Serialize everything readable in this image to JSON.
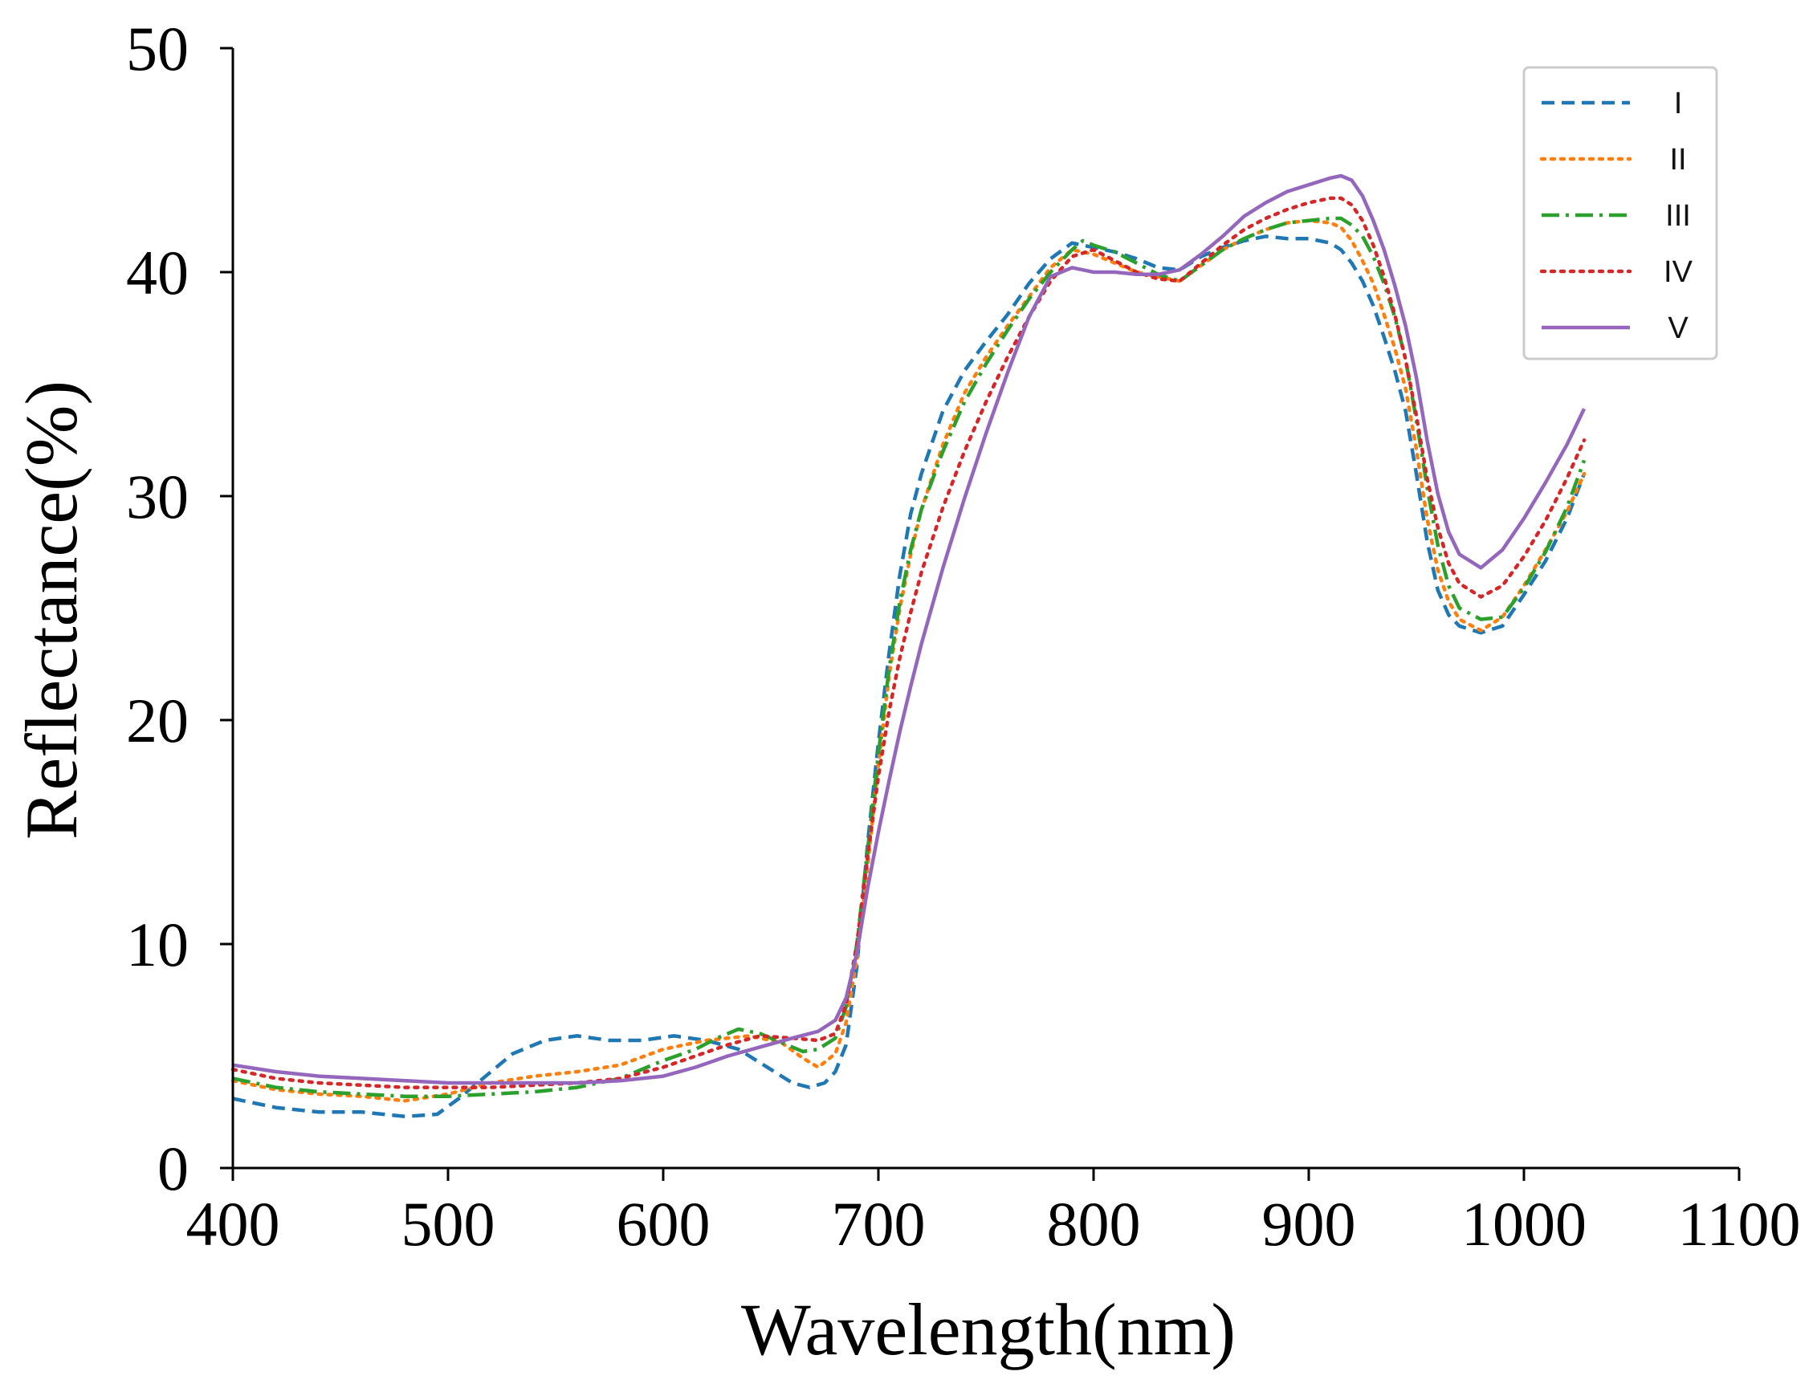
{
  "chart_data": {
    "type": "line",
    "title": "",
    "xlabel": "Wavelength(nm)",
    "ylabel": "Reflectance(%)",
    "xlim": [
      400,
      1100
    ],
    "ylim": [
      0,
      50
    ],
    "xticks": [
      400,
      500,
      600,
      700,
      800,
      900,
      1000,
      1100
    ],
    "yticks": [
      0,
      10,
      20,
      30,
      40,
      50
    ],
    "grid": false,
    "legend_position": "top-right",
    "series": [
      {
        "name": "I",
        "color": "#1f77b4",
        "style": "dashed",
        "x": [
          400,
          420,
          440,
          460,
          480,
          495,
          505,
          520,
          530,
          545,
          560,
          575,
          590,
          605,
          620,
          635,
          650,
          660,
          668,
          675,
          680,
          685,
          690,
          695,
          700,
          705,
          710,
          715,
          720,
          730,
          740,
          750,
          760,
          770,
          780,
          790,
          800,
          810,
          820,
          830,
          840,
          850,
          860,
          870,
          880,
          890,
          900,
          910,
          915,
          920,
          925,
          930,
          935,
          940,
          945,
          950,
          955,
          960,
          965,
          970,
          980,
          990,
          1000,
          1010,
          1020,
          1028
        ],
        "y": [
          3.1,
          2.7,
          2.5,
          2.5,
          2.3,
          2.4,
          3.1,
          4.3,
          5.1,
          5.7,
          5.9,
          5.7,
          5.7,
          5.9,
          5.7,
          5.3,
          4.4,
          3.8,
          3.6,
          3.8,
          4.3,
          5.5,
          9.0,
          14.5,
          19.0,
          23.0,
          26.5,
          29.2,
          31.0,
          33.8,
          35.6,
          36.9,
          38.1,
          39.5,
          40.6,
          41.3,
          41.1,
          40.9,
          40.6,
          40.2,
          40.1,
          40.7,
          41.1,
          41.4,
          41.6,
          41.5,
          41.5,
          41.3,
          41.0,
          40.4,
          39.6,
          38.5,
          37.1,
          35.6,
          33.8,
          31.0,
          28.0,
          25.8,
          24.7,
          24.2,
          23.9,
          24.2,
          25.6,
          27.1,
          29.0,
          31.0
        ]
      },
      {
        "name": "II",
        "color": "#ff7f0e",
        "style": "dotted",
        "x": [
          400,
          420,
          440,
          460,
          480,
          500,
          520,
          540,
          560,
          580,
          600,
          620,
          640,
          655,
          665,
          672,
          680,
          685,
          690,
          695,
          700,
          705,
          710,
          715,
          720,
          730,
          740,
          750,
          760,
          770,
          780,
          790,
          800,
          810,
          820,
          830,
          840,
          850,
          860,
          870,
          880,
          890,
          900,
          910,
          915,
          920,
          925,
          930,
          935,
          940,
          945,
          950,
          955,
          960,
          965,
          970,
          980,
          990,
          1000,
          1010,
          1020,
          1028
        ],
        "y": [
          3.9,
          3.5,
          3.3,
          3.2,
          3.0,
          3.3,
          3.8,
          4.1,
          4.3,
          4.6,
          5.3,
          5.7,
          5.9,
          5.6,
          4.9,
          4.5,
          5.1,
          6.5,
          9.3,
          13.5,
          18.0,
          22.0,
          25.0,
          27.4,
          29.4,
          32.3,
          34.6,
          36.2,
          37.6,
          38.9,
          40.2,
          41.0,
          40.8,
          40.4,
          40.0,
          39.8,
          39.6,
          40.3,
          41.0,
          41.5,
          41.9,
          42.2,
          42.3,
          42.2,
          42.0,
          41.4,
          40.5,
          39.5,
          38.1,
          36.6,
          34.8,
          32.1,
          29.0,
          26.7,
          25.3,
          24.5,
          24.0,
          24.6,
          26.0,
          27.6,
          29.3,
          31.0
        ]
      },
      {
        "name": "III",
        "color": "#2ca02c",
        "style": "dashdot",
        "x": [
          400,
          420,
          440,
          460,
          480,
          500,
          520,
          540,
          560,
          580,
          600,
          615,
          625,
          635,
          645,
          655,
          665,
          672,
          680,
          685,
          690,
          695,
          700,
          705,
          710,
          715,
          720,
          730,
          740,
          750,
          760,
          770,
          780,
          790,
          795,
          800,
          810,
          820,
          830,
          840,
          850,
          860,
          870,
          880,
          890,
          900,
          910,
          915,
          920,
          925,
          930,
          935,
          940,
          945,
          950,
          955,
          960,
          965,
          970,
          980,
          990,
          1000,
          1010,
          1020,
          1028
        ],
        "y": [
          4.0,
          3.6,
          3.4,
          3.3,
          3.2,
          3.2,
          3.3,
          3.4,
          3.6,
          4.0,
          4.8,
          5.3,
          5.8,
          6.2,
          6.0,
          5.6,
          5.2,
          5.3,
          5.8,
          7.2,
          10.0,
          14.2,
          18.5,
          22.3,
          25.3,
          27.6,
          29.4,
          32.0,
          34.2,
          35.9,
          37.4,
          38.8,
          40.0,
          41.0,
          41.4,
          41.2,
          40.9,
          40.4,
          39.9,
          39.6,
          40.3,
          41.0,
          41.5,
          41.9,
          42.2,
          42.3,
          42.4,
          42.4,
          42.1,
          41.6,
          40.7,
          39.5,
          38.0,
          36.1,
          33.4,
          30.4,
          27.8,
          26.0,
          25.0,
          24.5,
          24.6,
          25.9,
          27.5,
          29.5,
          31.6
        ]
      },
      {
        "name": "IV",
        "color": "#d62728",
        "style": "dotted",
        "x": [
          400,
          420,
          440,
          460,
          480,
          500,
          520,
          540,
          560,
          580,
          600,
          615,
          630,
          645,
          660,
          672,
          680,
          685,
          690,
          695,
          700,
          705,
          710,
          715,
          720,
          730,
          740,
          750,
          760,
          770,
          780,
          790,
          800,
          810,
          820,
          830,
          840,
          850,
          860,
          870,
          880,
          890,
          900,
          910,
          915,
          920,
          925,
          930,
          935,
          940,
          945,
          950,
          955,
          960,
          965,
          970,
          980,
          990,
          1000,
          1010,
          1020,
          1028
        ],
        "y": [
          4.4,
          4.0,
          3.8,
          3.7,
          3.6,
          3.6,
          3.6,
          3.7,
          3.8,
          4.0,
          4.5,
          5.0,
          5.5,
          5.9,
          5.8,
          5.7,
          6.0,
          7.3,
          10.0,
          13.9,
          17.5,
          20.4,
          22.8,
          24.8,
          26.6,
          29.5,
          32.0,
          34.2,
          36.2,
          38.0,
          39.6,
          40.7,
          41.0,
          40.5,
          40.0,
          39.7,
          39.6,
          40.4,
          41.2,
          41.9,
          42.4,
          42.8,
          43.1,
          43.3,
          43.3,
          43.0,
          42.3,
          41.2,
          39.8,
          38.1,
          36.1,
          33.6,
          30.8,
          28.6,
          27.0,
          26.1,
          25.5,
          26.0,
          27.3,
          28.9,
          30.8,
          32.5
        ]
      },
      {
        "name": "V",
        "color": "#9467bd",
        "style": "solid",
        "x": [
          400,
          420,
          440,
          460,
          480,
          500,
          520,
          540,
          560,
          580,
          600,
          615,
          630,
          645,
          660,
          672,
          680,
          685,
          690,
          695,
          700,
          705,
          710,
          715,
          720,
          730,
          740,
          750,
          760,
          770,
          780,
          790,
          795,
          800,
          810,
          820,
          830,
          840,
          850,
          860,
          870,
          880,
          890,
          900,
          910,
          915,
          920,
          925,
          930,
          935,
          940,
          945,
          950,
          955,
          960,
          965,
          970,
          980,
          990,
          1000,
          1010,
          1020,
          1028
        ],
        "y": [
          4.6,
          4.3,
          4.1,
          4.0,
          3.9,
          3.8,
          3.8,
          3.8,
          3.8,
          3.9,
          4.1,
          4.5,
          5.0,
          5.4,
          5.8,
          6.1,
          6.6,
          7.6,
          9.6,
          12.5,
          15.0,
          17.3,
          19.5,
          21.5,
          23.4,
          26.8,
          29.9,
          32.8,
          35.5,
          38.0,
          39.8,
          40.2,
          40.1,
          40.0,
          40.0,
          39.9,
          39.9,
          40.1,
          40.8,
          41.6,
          42.5,
          43.1,
          43.6,
          43.9,
          44.2,
          44.3,
          44.1,
          43.4,
          42.3,
          41.0,
          39.4,
          37.6,
          35.3,
          32.5,
          30.1,
          28.4,
          27.4,
          26.8,
          27.6,
          29.0,
          30.6,
          32.3,
          33.9
        ]
      }
    ]
  }
}
